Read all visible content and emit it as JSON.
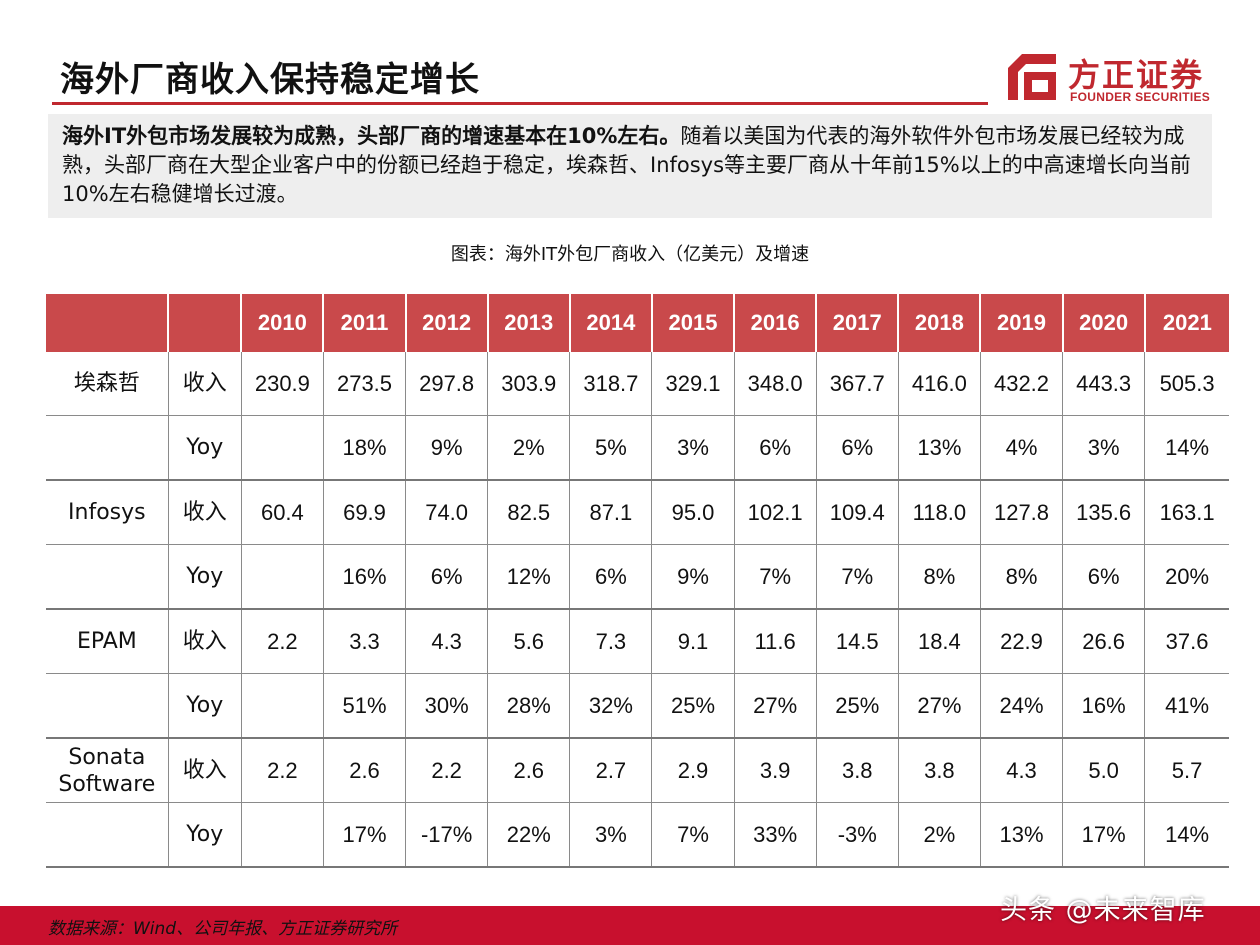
{
  "title": "海外厂商收入保持稳定增长",
  "logo": {
    "cn": "方正证券",
    "en": "FOUNDER SECURITIES",
    "color": "#c0282f"
  },
  "summary": {
    "bold": "海外IT外包市场发展较为成熟，头部厂商的增速基本在10%左右。",
    "text": "随着以美国为代表的海外软件外包市场发展已经较为成熟，头部厂商在大型企业客户中的份额已经趋于稳定，埃森哲、Infosys等主要厂商从十年前15%以上的中高速增长向当前10%左右稳健增长过渡。"
  },
  "caption": "图表：海外IT外包厂商收入（亿美元）及增速",
  "table": {
    "years": [
      "2010",
      "2011",
      "2012",
      "2013",
      "2014",
      "2015",
      "2016",
      "2017",
      "2018",
      "2019",
      "2020",
      "2021"
    ],
    "companies": [
      {
        "name": "埃森哲",
        "revenue_label": "收入",
        "revenue": [
          "230.9",
          "273.5",
          "297.8",
          "303.9",
          "318.7",
          "329.1",
          "348.0",
          "367.7",
          "416.0",
          "432.2",
          "443.3",
          "505.3"
        ],
        "yoy_label": "Yoy",
        "yoy": [
          "",
          "18%",
          "9%",
          "2%",
          "5%",
          "3%",
          "6%",
          "6%",
          "13%",
          "4%",
          "3%",
          "14%"
        ]
      },
      {
        "name": "Infosys",
        "revenue_label": "收入",
        "revenue": [
          "60.4",
          "69.9",
          "74.0",
          "82.5",
          "87.1",
          "95.0",
          "102.1",
          "109.4",
          "118.0",
          "127.8",
          "135.6",
          "163.1"
        ],
        "yoy_label": "Yoy",
        "yoy": [
          "",
          "16%",
          "6%",
          "12%",
          "6%",
          "9%",
          "7%",
          "7%",
          "8%",
          "8%",
          "6%",
          "20%"
        ]
      },
      {
        "name": "EPAM",
        "revenue_label": "收入",
        "revenue": [
          "2.2",
          "3.3",
          "4.3",
          "5.6",
          "7.3",
          "9.1",
          "11.6",
          "14.5",
          "18.4",
          "22.9",
          "26.6",
          "37.6"
        ],
        "yoy_label": "Yoy",
        "yoy": [
          "",
          "51%",
          "30%",
          "28%",
          "32%",
          "25%",
          "27%",
          "25%",
          "27%",
          "24%",
          "16%",
          "41%"
        ]
      },
      {
        "name": "Sonata Software",
        "revenue_label": "收入",
        "revenue": [
          "2.2",
          "2.6",
          "2.2",
          "2.6",
          "2.7",
          "2.9",
          "3.9",
          "3.8",
          "3.8",
          "4.3",
          "5.0",
          "5.7"
        ],
        "yoy_label": "Yoy",
        "yoy": [
          "",
          "17%",
          "-17%",
          "22%",
          "3%",
          "7%",
          "33%",
          "-3%",
          "2%",
          "13%",
          "17%",
          "14%"
        ]
      }
    ]
  },
  "source": "数据来源：Wind、公司年报、方正证券研究所",
  "watermark": "头条 @未来智库",
  "colors": {
    "header_bg": "#c9494b",
    "footer_bar": "#c8102e",
    "summary_bg": "#eeeeee"
  }
}
